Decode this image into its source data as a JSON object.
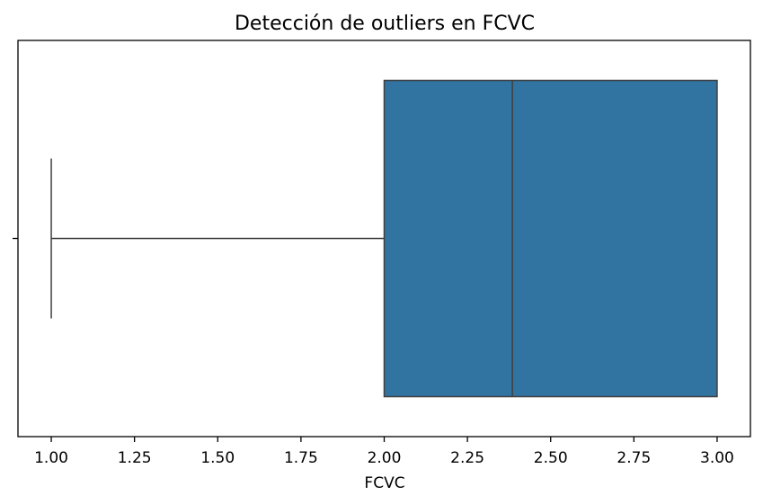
{
  "chart_data": {
    "type": "box",
    "title": "Detección de outliers en FCVC",
    "xlabel": "FCVC",
    "ylabel": "",
    "xlim": [
      0.9,
      3.1
    ],
    "xticks": [
      1.0,
      1.25,
      1.5,
      1.75,
      2.0,
      2.25,
      2.5,
      2.75,
      3.0
    ],
    "xtick_labels": [
      "1.00",
      "1.25",
      "1.50",
      "1.75",
      "2.00",
      "2.25",
      "2.50",
      "2.75",
      "3.00"
    ],
    "box": {
      "whisker_low": 1.0,
      "q1": 2.0,
      "median": 2.385,
      "q3": 3.0,
      "whisker_high": 3.0,
      "outliers": []
    },
    "orientation": "horizontal",
    "grid": false,
    "legend": "none",
    "colors": {
      "box_fill": "#3274a1",
      "line": "#3f3f3f",
      "frame": "#000000"
    }
  }
}
